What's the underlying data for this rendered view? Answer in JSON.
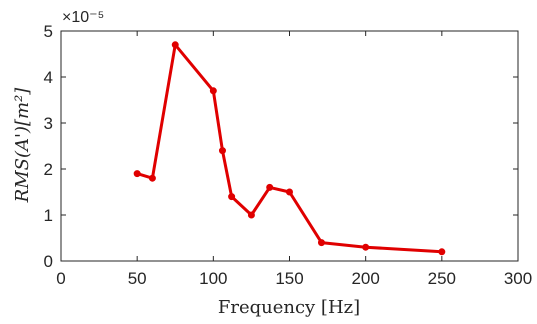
{
  "chart_data": {
    "type": "line",
    "xlabel": "Frequency [Hz]",
    "ylabel": "RMS(A')[m²]",
    "exponent_label": "×10⁻⁵",
    "xlim": [
      0,
      300
    ],
    "ylim": [
      0,
      5
    ],
    "x_ticks": [
      "0",
      "50",
      "100",
      "150",
      "200",
      "250",
      "300"
    ],
    "y_ticks": [
      "0",
      "1",
      "2",
      "3",
      "4",
      "5"
    ],
    "grid": false,
    "line_color": "#e00000",
    "series": [
      {
        "x": [
          50,
          60,
          75,
          100,
          106,
          112,
          125,
          137,
          150,
          171,
          200,
          250
        ],
        "y": [
          1.9,
          1.8,
          4.7,
          3.7,
          2.4,
          1.4,
          1.0,
          1.6,
          1.5,
          0.4,
          0.3,
          0.2
        ]
      }
    ]
  }
}
